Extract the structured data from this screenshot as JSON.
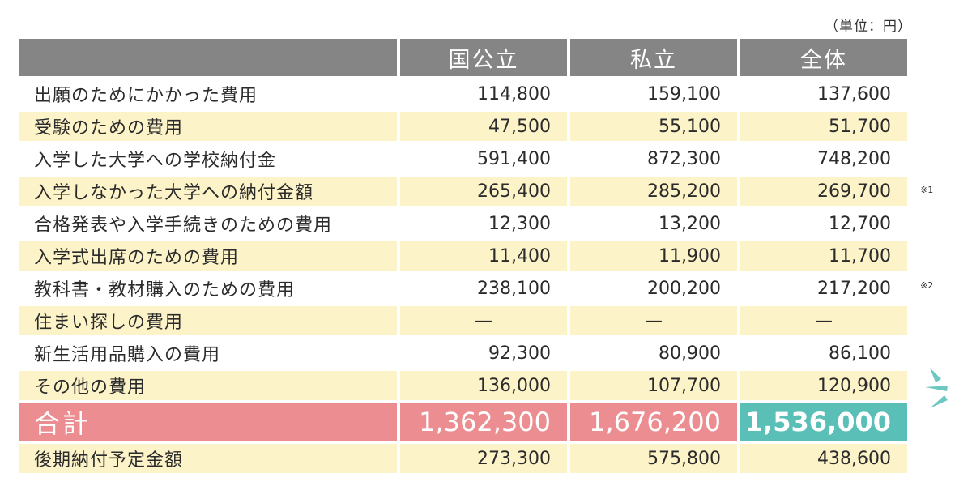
{
  "unit_label": "（単位：円）",
  "headers": [
    "",
    "国公立",
    "私立",
    "全体"
  ],
  "rows": [
    {
      "label": "出願のためにかかった費用",
      "values": [
        "114,800",
        "159,100",
        "137,600"
      ],
      "note": ""
    },
    {
      "label": "受験のための費用",
      "values": [
        "47,500",
        "55,100",
        "51,700"
      ],
      "note": ""
    },
    {
      "label": "入学した大学への学校納付金",
      "values": [
        "591,400",
        "872,300",
        "748,200"
      ],
      "note": ""
    },
    {
      "label": "入学しなかった大学への納付金額",
      "values": [
        "265,400",
        "285,200",
        "269,700"
      ],
      "note": "※1"
    },
    {
      "label": "合格発表や入学手続きのための費用",
      "values": [
        "12,300",
        "13,200",
        "12,700"
      ],
      "note": ""
    },
    {
      "label": "入学式出席のための費用",
      "values": [
        "11,400",
        "11,900",
        "11,700"
      ],
      "note": ""
    },
    {
      "label": "教科書・教材購入のための費用",
      "values": [
        "238,100",
        "200,200",
        "217,200"
      ],
      "note": "※2"
    },
    {
      "label": "住まい探しの費用",
      "values": [
        "—",
        "—",
        "—"
      ],
      "note": ""
    },
    {
      "label": "新生活用品購入の費用",
      "values": [
        "92,300",
        "80,900",
        "86,100"
      ],
      "note": ""
    },
    {
      "label": "その他の費用",
      "values": [
        "136,000",
        "107,700",
        "120,900"
      ],
      "note": ""
    }
  ],
  "total": {
    "label": "合計",
    "values": [
      "1,362,300",
      "1,676,200",
      "1,536,000"
    ]
  },
  "last_row": {
    "label": "後期納付予定金額",
    "values": [
      "273,300",
      "575,800",
      "438,600"
    ]
  },
  "colors": {
    "header_bg": "#858585",
    "shade_bg": "#fdf3c8",
    "total_bg": "#ec8d92",
    "grand_total_bg": "#5abfb6",
    "sparkle": "#6cc8c0"
  },
  "icons": {
    "sparkle": "sparkle-lines-icon"
  }
}
